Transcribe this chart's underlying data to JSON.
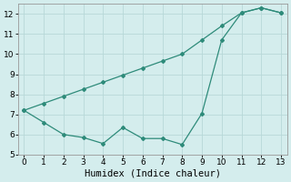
{
  "xlabel": "Humidex (Indice chaleur)",
  "line1_x": [
    0,
    1,
    2,
    3,
    4,
    5,
    6,
    7,
    8,
    9,
    10,
    11,
    12,
    13
  ],
  "line1_y": [
    7.2,
    6.6,
    6.0,
    5.85,
    5.55,
    6.35,
    5.8,
    5.8,
    5.5,
    7.05,
    10.7,
    12.05,
    12.3,
    12.05
  ],
  "line2_x": [
    0,
    1,
    2,
    3,
    4,
    5,
    6,
    7,
    8,
    9,
    10,
    11,
    12,
    13
  ],
  "line2_y": [
    7.2,
    7.55,
    7.9,
    8.25,
    8.6,
    8.95,
    9.3,
    9.65,
    10.0,
    10.7,
    11.4,
    12.05,
    12.3,
    12.05
  ],
  "line_color": "#2e8b7a",
  "bg_color": "#d4eded",
  "grid_color": "#b8d8d8",
  "xlim": [
    0,
    13
  ],
  "ylim": [
    5,
    12.5
  ],
  "yticks": [
    5,
    6,
    7,
    8,
    9,
    10,
    11,
    12
  ],
  "xticks": [
    0,
    1,
    2,
    3,
    4,
    5,
    6,
    7,
    8,
    9,
    10,
    11,
    12,
    13
  ],
  "xlabel_fontsize": 7.5,
  "tick_fontsize": 6.5
}
